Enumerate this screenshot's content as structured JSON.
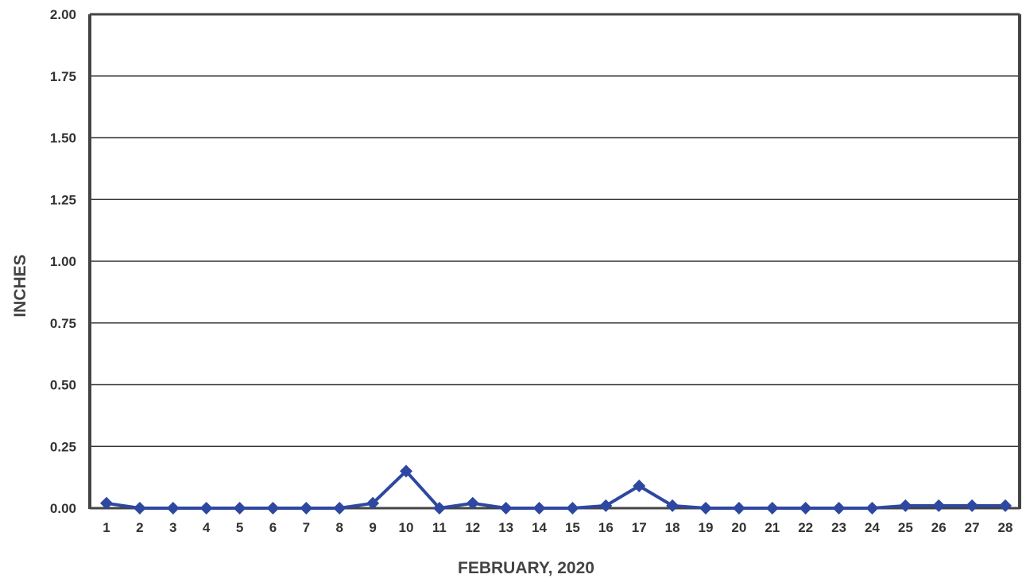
{
  "chart_data": {
    "type": "line",
    "xlabel": "FEBRUARY, 2020",
    "ylabel": "INCHES",
    "ylim": [
      0,
      2.0
    ],
    "yticks": [
      "0.00",
      "0.25",
      "0.50",
      "0.75",
      "1.00",
      "1.25",
      "1.50",
      "1.75",
      "2.00"
    ],
    "categories": [
      "1",
      "2",
      "3",
      "4",
      "5",
      "6",
      "7",
      "8",
      "9",
      "10",
      "11",
      "12",
      "13",
      "14",
      "15",
      "16",
      "17",
      "18",
      "19",
      "20",
      "21",
      "22",
      "23",
      "24",
      "25",
      "26",
      "27",
      "28"
    ],
    "series": [
      {
        "values": [
          0.02,
          0.0,
          0.0,
          0.0,
          0.0,
          0.0,
          0.0,
          0.0,
          0.02,
          0.15,
          0.0,
          0.02,
          0.0,
          0.0,
          0.0,
          0.01,
          0.09,
          0.01,
          0.0,
          0.0,
          0.0,
          0.0,
          0.0,
          0.0,
          0.01,
          0.01,
          0.01,
          0.01
        ],
        "color": "#2e47a0"
      }
    ],
    "grid": true,
    "legend": "none",
    "colors": {
      "grid": "#333333",
      "frame": "#444444",
      "line": "#2e47a0"
    }
  }
}
